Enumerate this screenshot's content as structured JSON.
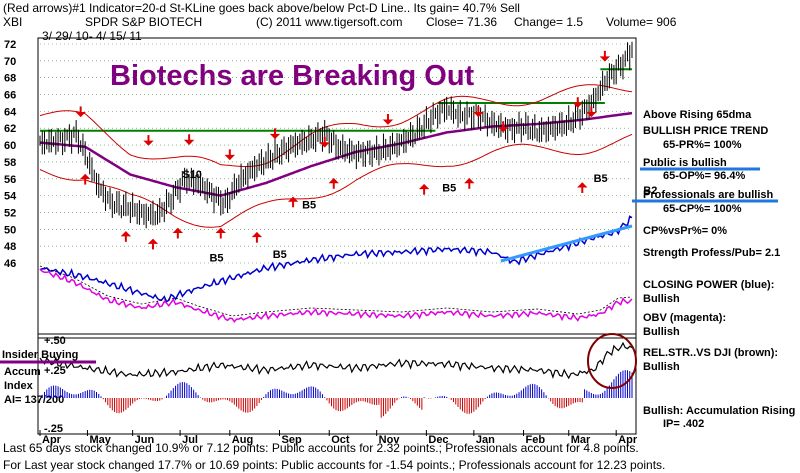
{
  "header": {
    "line1": "(Red arrows)#1 Indicator=20-d St-KLine goes back above/below Pct-D Line.. Its gain= 40.7% Sell",
    "ticker": "XBI",
    "name": "SPDR S&P BIOTECH",
    "copyright": "(C) 2011 www.tigersoft.com",
    "close": "Close= 71.36",
    "change": "Change= 1.5",
    "volume": "Volume= 906",
    "daterange": "3/ 29/ 10- 4/ 15/ 11"
  },
  "title": "Biotechs are Breaking Out",
  "colors": {
    "title": "#800080",
    "price": "#000000",
    "band": "#cc0000",
    "ma": "#800080",
    "resistance": "#008000",
    "cp": "#0000cc",
    "obv": "#e000e0",
    "trend": "#3399ff",
    "insider": "#800080"
  },
  "labels": {
    "r1": "Above Rising 65dma",
    "r2": "BULLISH PRICE TREND",
    "r3": "65-PR%= 100%",
    "r4": "Public is bullish",
    "r5": "65-OP%= 96.4%",
    "r6": "Professionals are bullish",
    "r7": "65-CP%= 100%",
    "r8": "CP%vsPr%= 0%",
    "r9": "Strength Profess/Pub= 2.1",
    "r10": "CLOSING POWER (blue):",
    "r11": "Bullish",
    "r12": "OBV (magenta):",
    "r13": "Bullish",
    "r14": "REL.STR..VS DJI (brown):",
    "r15": "Bullish",
    "r16": "Bullish: Accumulation Rising",
    "r17": "IP= .402",
    "insider": "Insider Buying",
    "accum1": "Accum",
    "accum2": "Index",
    "accum3": "AI= 137/200",
    "b5": "B5",
    "b2": "B2",
    "s10": "S10"
  },
  "footer": {
    "f1": "Last 65 days stock changed 10.9% or 7.12 points: Public accounts for 2.32 points.; Professionals account for 4.8 points.",
    "f2": "For Last year stock changed 17.7% or 10.69 points: Public accounts for -1.54 points.; Professionals account for 12.23 points."
  },
  "chart_data": {
    "type": "line",
    "ylim": [
      46,
      72
    ],
    "ytick_labels": [
      "72",
      "70",
      "68",
      "66",
      "64",
      "62",
      "60",
      "58",
      "56",
      "54",
      "52",
      "50",
      "48",
      "46"
    ],
    "yticks": [
      72,
      70,
      68,
      66,
      64,
      62,
      60,
      58,
      56,
      54,
      52,
      50,
      48,
      46
    ],
    "xtick_labels": [
      "Apr",
      "May",
      "Jun",
      "Jul",
      "Aug",
      "Sep",
      "Oct",
      "Nov",
      "Dec",
      "Jan",
      "Feb",
      "Mar",
      "Apr"
    ],
    "xtick_pos": [
      0,
      21,
      41,
      62,
      84,
      106,
      128,
      149,
      171,
      192,
      214,
      234,
      255
    ],
    "ndays": 262,
    "accum_ticks": [
      "+.50",
      "+.25",
      "-.25"
    ],
    "resistance": [
      {
        "from": 0,
        "to": 175,
        "value": 61.7
      },
      {
        "from": 176,
        "to": 250,
        "value": 65.0
      },
      {
        "from": 248,
        "to": 262,
        "value": 69.0
      }
    ],
    "price_anchors": [
      [
        0,
        60.2
      ],
      [
        10,
        60.6
      ],
      [
        16,
        61.3
      ],
      [
        20,
        59
      ],
      [
        26,
        55
      ],
      [
        32,
        53
      ],
      [
        40,
        52.5
      ],
      [
        46,
        51.8
      ],
      [
        52,
        51.7
      ],
      [
        58,
        53.5
      ],
      [
        64,
        56
      ],
      [
        70,
        55.5
      ],
      [
        76,
        54.2
      ],
      [
        82,
        53
      ],
      [
        88,
        55.7
      ],
      [
        96,
        57.5
      ],
      [
        104,
        58.8
      ],
      [
        112,
        60
      ],
      [
        120,
        60.6
      ],
      [
        126,
        61.4
      ],
      [
        132,
        59.7
      ],
      [
        140,
        59
      ],
      [
        150,
        59.2
      ],
      [
        158,
        60
      ],
      [
        166,
        61.3
      ],
      [
        174,
        63.4
      ],
      [
        180,
        64.4
      ],
      [
        186,
        63.5
      ],
      [
        194,
        63.6
      ],
      [
        200,
        62.5
      ],
      [
        208,
        61.9
      ],
      [
        214,
        62.2
      ],
      [
        220,
        61.6
      ],
      [
        228,
        62.1
      ],
      [
        234,
        62.6
      ],
      [
        240,
        63.8
      ],
      [
        246,
        65.6
      ],
      [
        250,
        67.5
      ],
      [
        254,
        68.7
      ],
      [
        258,
        69.7
      ],
      [
        262,
        71.36
      ]
    ],
    "ma_anchors": [
      [
        0,
        60.3
      ],
      [
        20,
        59.8
      ],
      [
        40,
        56.5
      ],
      [
        60,
        55
      ],
      [
        80,
        54
      ],
      [
        100,
        55.5
      ],
      [
        120,
        57.5
      ],
      [
        140,
        59.2
      ],
      [
        160,
        60.2
      ],
      [
        180,
        61.5
      ],
      [
        200,
        62.2
      ],
      [
        220,
        62.5
      ],
      [
        240,
        63
      ],
      [
        262,
        63.8
      ]
    ],
    "cp_anchors": [
      [
        0,
        268
      ],
      [
        20,
        277
      ],
      [
        40,
        290
      ],
      [
        55,
        300
      ],
      [
        70,
        288
      ],
      [
        85,
        278
      ],
      [
        100,
        268
      ],
      [
        120,
        260
      ],
      [
        140,
        254
      ],
      [
        160,
        252
      ],
      [
        180,
        249
      ],
      [
        200,
        252
      ],
      [
        210,
        262
      ],
      [
        220,
        255
      ],
      [
        232,
        247
      ],
      [
        245,
        238
      ],
      [
        255,
        232
      ],
      [
        262,
        218
      ]
    ],
    "obv_anchors": [
      [
        0,
        270
      ],
      [
        15,
        282
      ],
      [
        30,
        300
      ],
      [
        45,
        308
      ],
      [
        60,
        302
      ],
      [
        70,
        310
      ],
      [
        85,
        320
      ],
      [
        100,
        316
      ],
      [
        120,
        312
      ],
      [
        140,
        314
      ],
      [
        160,
        316
      ],
      [
        180,
        312
      ],
      [
        200,
        316
      ],
      [
        220,
        313
      ],
      [
        238,
        318
      ],
      [
        248,
        314
      ],
      [
        256,
        302
      ],
      [
        262,
        301
      ]
    ],
    "rs_anchors": [
      [
        0,
        360
      ],
      [
        20,
        368
      ],
      [
        40,
        375
      ],
      [
        60,
        372
      ],
      [
        80,
        365
      ],
      [
        100,
        370
      ],
      [
        120,
        365
      ],
      [
        140,
        368
      ],
      [
        160,
        363
      ],
      [
        180,
        364
      ],
      [
        200,
        368
      ],
      [
        220,
        370
      ],
      [
        235,
        375
      ],
      [
        245,
        370
      ],
      [
        252,
        352
      ],
      [
        258,
        346
      ],
      [
        262,
        348
      ]
    ],
    "red_arrows_up": [
      [
        20,
        56.5
      ],
      [
        38,
        49.7
      ],
      [
        50,
        48.8
      ],
      [
        61,
        50.1
      ],
      [
        80,
        50.1
      ],
      [
        96,
        49.6
      ],
      [
        112,
        53.8
      ],
      [
        130,
        56
      ],
      [
        170,
        55.3
      ],
      [
        190,
        56
      ],
      [
        240,
        55.5
      ]
    ],
    "red_arrows_down": [
      [
        18,
        63.4
      ],
      [
        48,
        60
      ],
      [
        66,
        60.1
      ],
      [
        84,
        58.3
      ],
      [
        104,
        60.8
      ],
      [
        126,
        59.8
      ],
      [
        154,
        62.5
      ],
      [
        194,
        63.4
      ],
      [
        205,
        61.6
      ],
      [
        238,
        64.5
      ],
      [
        244,
        63.4
      ],
      [
        250,
        70
      ]
    ],
    "signal_labels": [
      {
        "label": "S10",
        "x": 63,
        "y": 56.1
      },
      {
        "label": "B5",
        "x": 116,
        "y": 52.5
      },
      {
        "label": "B5",
        "x": 178,
        "y": 54.5
      },
      {
        "label": "B5",
        "x": 75,
        "y": 46.2
      },
      {
        "label": "B5",
        "x": 103,
        "y": 46.6
      },
      {
        "label": "B5",
        "x": 245,
        "y": 55.6
      },
      {
        "label": "B2",
        "x": 267,
        "y": 54.2
      }
    ]
  }
}
